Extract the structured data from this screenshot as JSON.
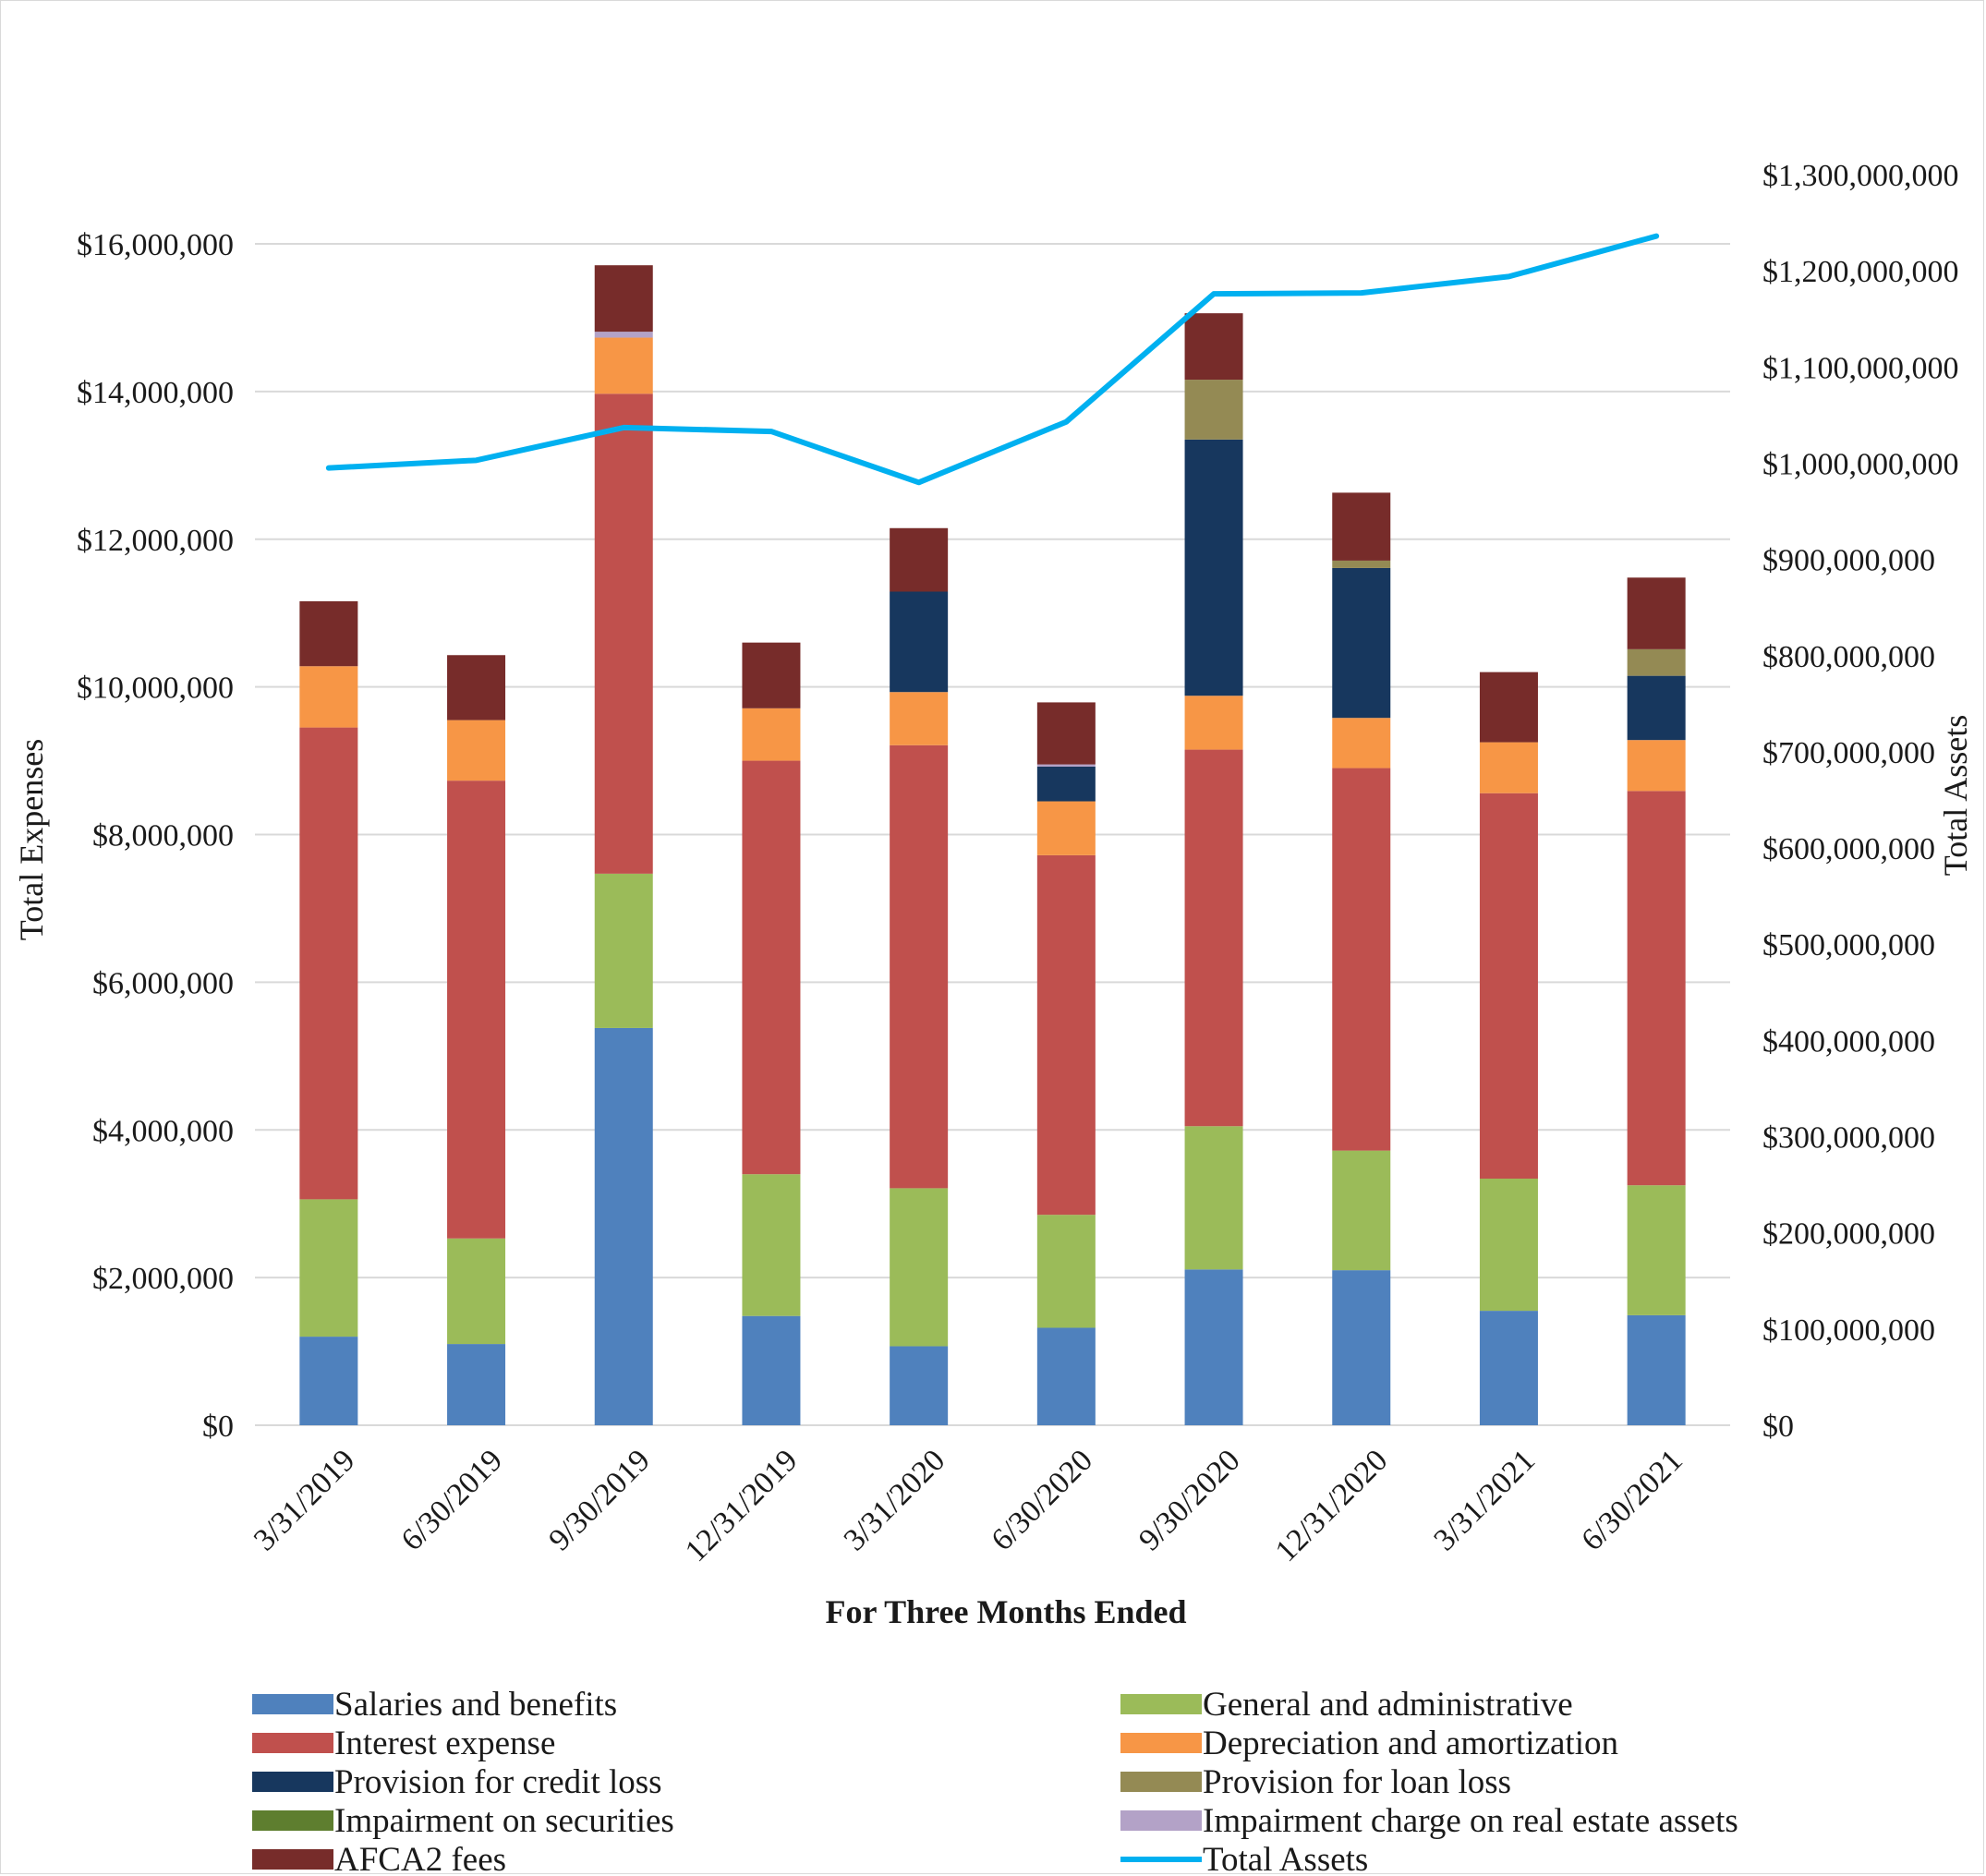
{
  "chart_data": {
    "type": "bar",
    "stacked": true,
    "title": "",
    "xlabel": "For Three Months Ended",
    "ylabel": "Total Expenses",
    "y2label": "Total Assets",
    "ylim": [
      0,
      16000000
    ],
    "y2lim": [
      0,
      1300000000
    ],
    "grid": true,
    "legend_position": "bottom",
    "categories": [
      "3/31/2019",
      "6/30/2019",
      "9/30/2019",
      "12/31/2019",
      "3/31/2020",
      "6/30/2020",
      "9/30/2020",
      "12/31/2020",
      "3/31/2021",
      "6/30/2021"
    ],
    "y_ticks": [
      "$0",
      "$2,000,000",
      "$4,000,000",
      "$6,000,000",
      "$8,000,000",
      "$10,000,000",
      "$12,000,000",
      "$14,000,000",
      "$16,000,000"
    ],
    "y_tick_values": [
      0,
      2000000,
      4000000,
      6000000,
      8000000,
      10000000,
      12000000,
      14000000,
      16000000
    ],
    "y2_ticks": [
      "$0",
      "$100,000,000",
      "$200,000,000",
      "$300,000,000",
      "$400,000,000",
      "$500,000,000",
      "$600,000,000",
      "$700,000,000",
      "$800,000,000",
      "$900,000,000",
      "$1,000,000,000",
      "$1,100,000,000",
      "$1,200,000,000",
      "$1,300,000,000"
    ],
    "y2_tick_values": [
      0,
      100000000,
      200000000,
      300000000,
      400000000,
      500000000,
      600000000,
      700000000,
      800000000,
      900000000,
      1000000000,
      1100000000,
      1200000000,
      1300000000
    ],
    "series": [
      {
        "name": "Salaries and benefits",
        "color": "#4f81bd",
        "values": [
          1200000,
          1100000,
          5380000,
          1480000,
          1070000,
          1320000,
          2110000,
          2100000,
          1550000,
          1490000
        ]
      },
      {
        "name": "General and administrative",
        "color": "#9bbb59",
        "values": [
          1860000,
          1430000,
          2090000,
          1920000,
          2140000,
          1530000,
          1940000,
          1620000,
          1790000,
          1760000
        ]
      },
      {
        "name": "Interest expense",
        "color": "#c0504d",
        "values": [
          6390000,
          6200000,
          6500000,
          5600000,
          6000000,
          4870000,
          5100000,
          5180000,
          5220000,
          5340000
        ]
      },
      {
        "name": "Depreciation and amortization",
        "color": "#f79646",
        "values": [
          830000,
          820000,
          760000,
          710000,
          720000,
          730000,
          730000,
          680000,
          690000,
          690000
        ]
      },
      {
        "name": "Provision for credit loss",
        "color": "#17375e",
        "values": [
          0,
          0,
          0,
          0,
          1360000,
          470000,
          3470000,
          2030000,
          0,
          870000
        ]
      },
      {
        "name": "Provision for loan loss",
        "color": "#948a54",
        "values": [
          0,
          0,
          0,
          0,
          0,
          0,
          810000,
          100000,
          0,
          360000
        ]
      },
      {
        "name": "Impairment on securities",
        "color": "#5e7e2f",
        "values": [
          0,
          0,
          0,
          0,
          0,
          0,
          0,
          0,
          0,
          0
        ]
      },
      {
        "name": "Impairment charge on real estate assets",
        "color": "#b3a2c7",
        "values": [
          0,
          0,
          80000,
          0,
          0,
          30000,
          0,
          0,
          0,
          0
        ]
      },
      {
        "name": "AFCA2 fees",
        "color": "#772c2a",
        "values": [
          880000,
          880000,
          900000,
          890000,
          860000,
          840000,
          900000,
          920000,
          950000,
          970000
        ]
      }
    ],
    "line_series": {
      "name": "Total Assets",
      "color": "#00b0f0",
      "axis": "right",
      "values": [
        995000000,
        1003000000,
        1037000000,
        1033000000,
        980000000,
        1043000000,
        1176000000,
        1177000000,
        1194000000,
        1236000000
      ]
    },
    "legend_left": [
      "Salaries and benefits",
      "Interest expense",
      "Provision for credit loss",
      "Impairment on securities",
      "AFCA2 fees"
    ],
    "legend_right": [
      "General and administrative",
      "Depreciation and amortization",
      "Provision for loan loss",
      "Impairment charge on real estate assets",
      "Total Assets"
    ]
  }
}
